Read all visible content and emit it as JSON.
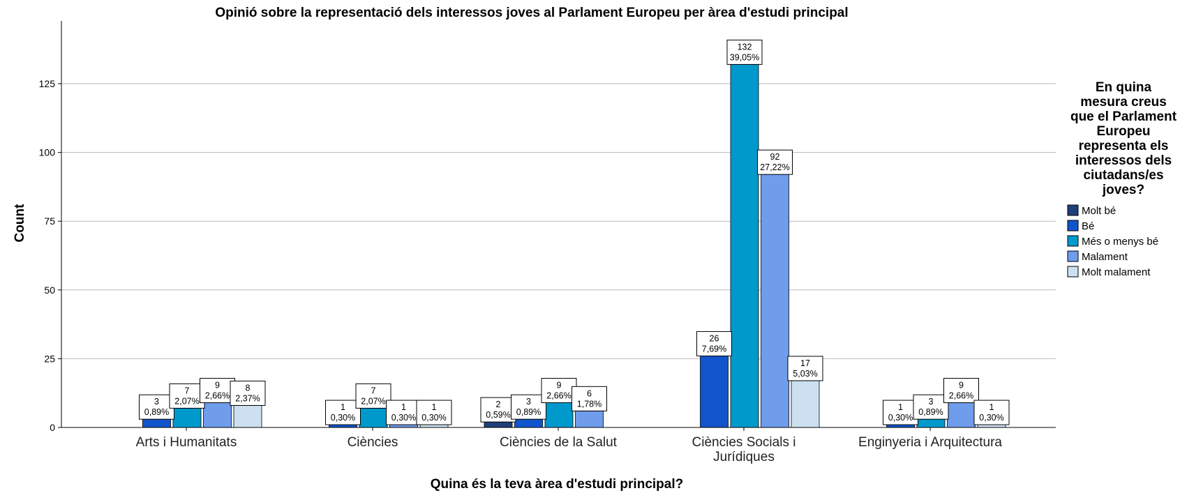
{
  "chart_data": {
    "type": "bar",
    "title": "Opinió sobre la representació dels interessos joves al Parlament Europeu per àrea d'estudi principal",
    "xlabel": "Quina és la teva àrea d'estudi principal?",
    "ylabel": "Count",
    "ylim": [
      0,
      145
    ],
    "yticks": [
      0,
      25,
      50,
      75,
      100,
      125
    ],
    "grid": true,
    "legend_position": "right",
    "legend_title_lines": [
      "En quina",
      "mesura creus",
      "que el Parlament",
      "Europeu",
      "representa els",
      "interessos dels",
      "ciutadans/es",
      "joves?"
    ],
    "categories": [
      [
        "Arts i Humanitats"
      ],
      [
        "Ciències"
      ],
      [
        "Ciències de la Salut"
      ],
      [
        "Ciències Socials i",
        "Jurídiques"
      ],
      [
        "Enginyeria i Arquitectura"
      ]
    ],
    "series": [
      {
        "name": "Molt bé",
        "color": "#1f3f7a",
        "values": [
          null,
          null,
          2,
          null,
          null
        ],
        "percents": [
          null,
          null,
          "0,59%",
          null,
          null
        ]
      },
      {
        "name": "Bé",
        "color": "#1155cc",
        "values": [
          3,
          1,
          3,
          26,
          1
        ],
        "percents": [
          "0,89%",
          "0,30%",
          "0,89%",
          "7,69%",
          "0,30%"
        ]
      },
      {
        "name": "Més o menys bé",
        "color": "#0099cc",
        "values": [
          7,
          7,
          9,
          132,
          3
        ],
        "percents": [
          "2,07%",
          "2,07%",
          "2,66%",
          "39,05%",
          "0,89%"
        ]
      },
      {
        "name": "Malament",
        "color": "#6f9ceb",
        "values": [
          9,
          1,
          6,
          92,
          9
        ],
        "percents": [
          "2,66%",
          "0,30%",
          "1,78%",
          "27,22%",
          "2,66%"
        ]
      },
      {
        "name": "Molt malament",
        "color": "#cde0f2",
        "values": [
          8,
          1,
          null,
          17,
          1
        ],
        "percents": [
          "2,37%",
          "0,30%",
          null,
          "5,03%",
          "0,30%"
        ]
      }
    ]
  }
}
